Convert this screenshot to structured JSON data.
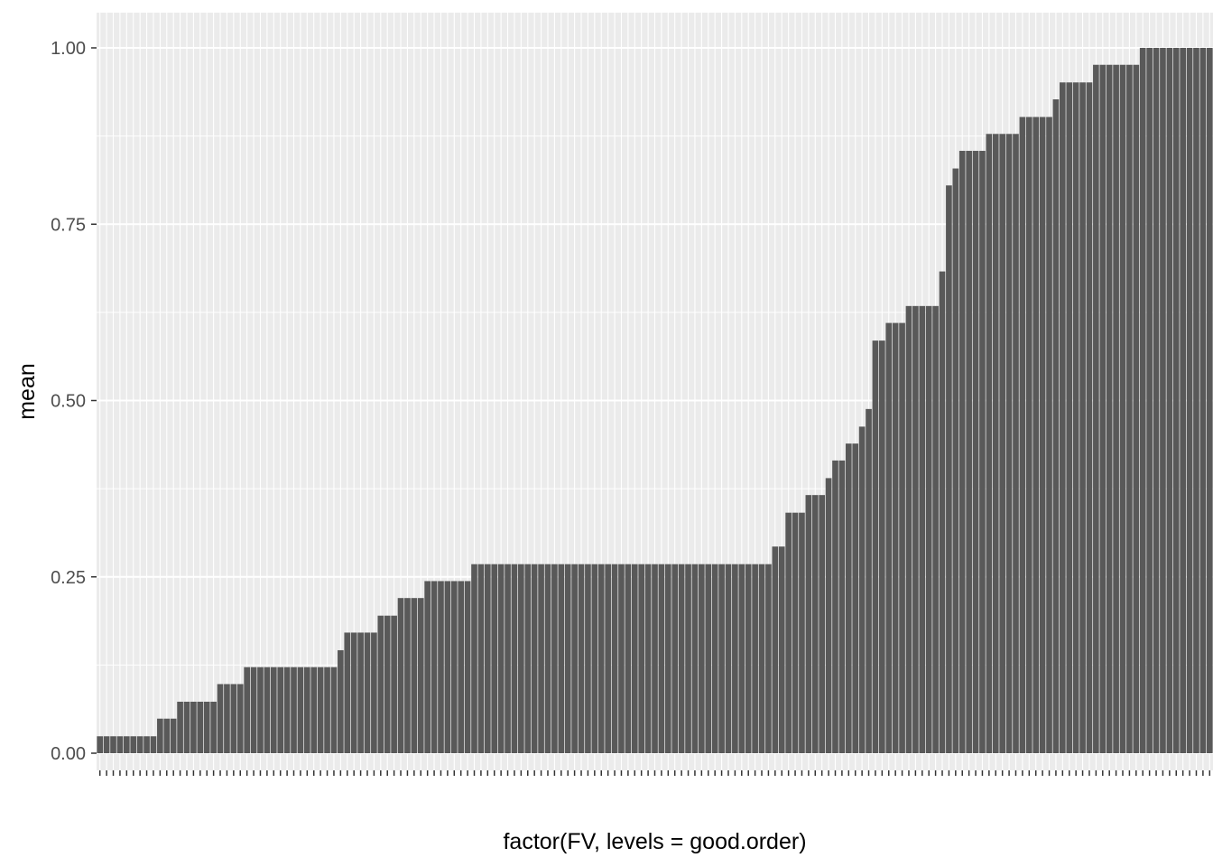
{
  "chart_data": {
    "type": "bar",
    "title": "",
    "xlabel": "factor(FV, levels = good.order)",
    "ylabel": "mean",
    "ylim": [
      0,
      1.05
    ],
    "y_ticks": [
      "0.00",
      "0.25",
      "0.50",
      "0.75",
      "1.00"
    ],
    "y_tick_values": [
      0,
      0.25,
      0.5,
      0.75,
      1.0
    ],
    "grid": true,
    "legend": "none",
    "bar_color": "#595959",
    "panel_color": "#ebebeb",
    "category_count": 151,
    "x_tick_labels_note": "151 overlapping category labels, illegible",
    "values": [
      0.024,
      0.024,
      0.024,
      0.024,
      0.024,
      0.024,
      0.024,
      0.024,
      0.024,
      0.049,
      0.049,
      0.049,
      0.073,
      0.073,
      0.073,
      0.073,
      0.073,
      0.073,
      0.098,
      0.098,
      0.098,
      0.098,
      0.122,
      0.122,
      0.122,
      0.122,
      0.122,
      0.122,
      0.122,
      0.122,
      0.122,
      0.122,
      0.122,
      0.122,
      0.122,
      0.122,
      0.146,
      0.171,
      0.171,
      0.171,
      0.171,
      0.171,
      0.195,
      0.195,
      0.195,
      0.22,
      0.22,
      0.22,
      0.22,
      0.244,
      0.244,
      0.244,
      0.244,
      0.244,
      0.244,
      0.244,
      0.268,
      0.268,
      0.268,
      0.268,
      0.268,
      0.268,
      0.268,
      0.268,
      0.268,
      0.268,
      0.268,
      0.268,
      0.268,
      0.268,
      0.268,
      0.268,
      0.268,
      0.268,
      0.268,
      0.268,
      0.268,
      0.268,
      0.268,
      0.268,
      0.268,
      0.268,
      0.268,
      0.268,
      0.268,
      0.268,
      0.268,
      0.268,
      0.268,
      0.268,
      0.268,
      0.268,
      0.268,
      0.268,
      0.268,
      0.268,
      0.268,
      0.268,
      0.268,
      0.268,
      0.268,
      0.293,
      0.293,
      0.341,
      0.341,
      0.341,
      0.366,
      0.366,
      0.366,
      0.39,
      0.415,
      0.415,
      0.439,
      0.439,
      0.463,
      0.488,
      0.585,
      0.585,
      0.61,
      0.61,
      0.61,
      0.634,
      0.634,
      0.634,
      0.634,
      0.634,
      0.683,
      0.805,
      0.829,
      0.854,
      0.854,
      0.854,
      0.854,
      0.878,
      0.878,
      0.878,
      0.878,
      0.878,
      0.902,
      0.902,
      0.902,
      0.902,
      0.902,
      0.927,
      0.951,
      0.951,
      0.951,
      0.951,
      0.951,
      0.976,
      0.976,
      0.976,
      0.976,
      0.976,
      0.976,
      0.976,
      1.0,
      1.0,
      1.0,
      1.0,
      1.0,
      1.0,
      1.0,
      1.0,
      1.0,
      1.0,
      1.0
    ]
  }
}
